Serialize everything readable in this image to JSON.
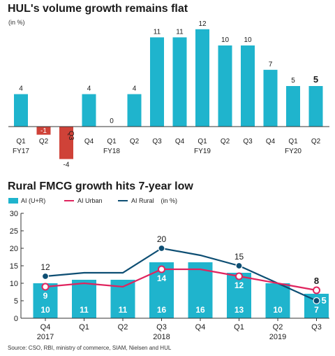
{
  "chart1": {
    "title": "HUL's volume growth remains flat",
    "unit": "(in %)",
    "colors": {
      "positive": "#1fb4cd",
      "negative": "#cf4238"
    },
    "chart_data": {
      "type": "bar",
      "categories": [
        "Q1",
        "Q2",
        "Q3",
        "Q4",
        "Q1",
        "Q2",
        "Q3",
        "Q4",
        "Q1",
        "Q2",
        "Q3",
        "Q4",
        "Q1",
        "Q2"
      ],
      "year_labels": [
        "FY17",
        "",
        "",
        "",
        "FY18",
        "",
        "",
        "",
        "FY19",
        "",
        "",
        "",
        "FY20",
        ""
      ],
      "values": [
        4,
        -1,
        -4,
        4,
        0,
        4,
        11,
        11,
        12,
        10,
        10,
        7,
        5,
        5
      ],
      "highlight_last": true
    }
  },
  "chart2": {
    "title": "Rural FMCG growth hits 7-year low",
    "unit": "(in %)",
    "legend": [
      {
        "name": "AI (U+R)",
        "kind": "bar",
        "color": "#1fb4cd"
      },
      {
        "name": "AI Urban",
        "kind": "line",
        "color": "#e0245e"
      },
      {
        "name": "AI Rural",
        "kind": "line",
        "color": "#0d4e73"
      }
    ],
    "chart_data": {
      "type": "bar",
      "categories": [
        "Q4",
        "Q1",
        "Q2",
        "Q3",
        "Q4",
        "Q1",
        "Q2",
        "Q3"
      ],
      "year_labels": [
        "2017",
        "",
        "",
        "2018",
        "",
        "",
        "2019",
        ""
      ],
      "ylim": [
        0,
        30
      ],
      "yticks": [
        0,
        5,
        10,
        15,
        20,
        25,
        30
      ],
      "series": [
        {
          "name": "AI (U+R)",
          "values": [
            10,
            11,
            11,
            16,
            16,
            13,
            10,
            7
          ]
        },
        {
          "name": "AI Urban",
          "values": [
            9,
            10,
            9,
            14,
            14,
            12,
            10,
            8
          ]
        },
        {
          "name": "AI Rural",
          "values": [
            12,
            13,
            13,
            20,
            18,
            15,
            10,
            5
          ]
        }
      ],
      "urban_labels": [
        "9",
        "",
        "",
        "14",
        "",
        "12",
        "",
        "8"
      ],
      "rural_labels": [
        "12",
        "",
        "",
        "20",
        "",
        "15",
        "",
        "5"
      ],
      "bar_labels": [
        "10",
        "11",
        "11",
        "16",
        "16",
        "13",
        "10",
        "7"
      ]
    }
  },
  "source": "Source: CSO, RBI, ministry of commerce, SIAM, Nielsen and HUL"
}
